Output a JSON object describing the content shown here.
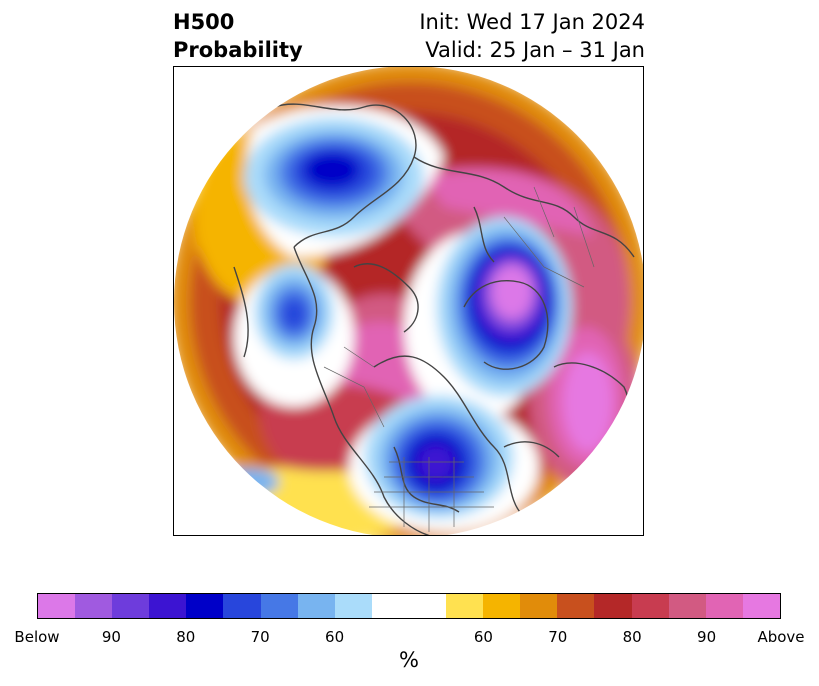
{
  "title": {
    "left_line1": "H500",
    "left_line2": "Probability",
    "right_line1": "Init: Wed 17 Jan 2024",
    "right_line2": "Valid: 25 Jan – 31 Jan"
  },
  "colorbar": {
    "unit": "%",
    "below_colors": [
      "#dc78e8",
      "#a05ae0",
      "#6e3cdc",
      "#3c14d2",
      "#0000c8",
      "#2846dc",
      "#4678e6",
      "#78b4f0",
      "#aadcfa"
    ],
    "neutral_color": "#ffffff",
    "above_colors": [
      "#ffe150",
      "#f5b400",
      "#e18c0a",
      "#c8501e",
      "#b42828",
      "#c83c50",
      "#d25a82",
      "#e164b4",
      "#e678e1"
    ],
    "tick_labels": [
      "Below",
      "90",
      "80",
      "70",
      "60",
      "60",
      "70",
      "80",
      "90",
      "Above"
    ]
  }
}
